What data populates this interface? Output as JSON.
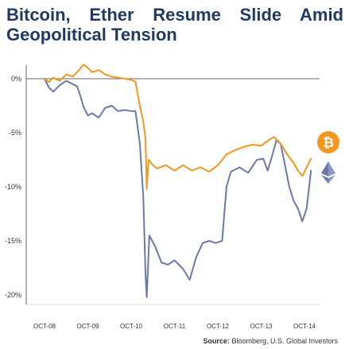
{
  "title": {
    "line1": "Bitcoin, Ether Resume Slide Amid",
    "line2": "Geopolitical Tension"
  },
  "source": {
    "label": "Source:",
    "text": "Bloomberg, U.S. Global Investors"
  },
  "colors": {
    "bitcoin": "#f2961e",
    "ether": "#6b78a8",
    "axis": "#666666",
    "title": "#1f3a64"
  },
  "icons": {
    "bitcoin": "bitcoin-logo-icon",
    "ether": "ether-logo-icon"
  },
  "chart_data": {
    "type": "line",
    "title": "Bitcoin, Ether Resume Slide Amid Geopolitical Tension",
    "xlabel": "",
    "ylabel": "",
    "x_ticks": [
      "OCT-08",
      "OCT-09",
      "OCT-10",
      "OCT-11",
      "OCT-12",
      "OCT-13",
      "OCT-14"
    ],
    "y_ticks": [
      "0%",
      "-5%",
      "-10%",
      "-15%",
      "-20%"
    ],
    "ylim": [
      -20.5,
      0.5
    ],
    "grid": false,
    "series": [
      {
        "key": "bitcoin",
        "points": [
          [
            0,
            0
          ],
          [
            0.1,
            -0.3
          ],
          [
            0.2,
            0.1
          ],
          [
            0.35,
            -0.2
          ],
          [
            0.5,
            0.4
          ],
          [
            0.65,
            0.2
          ],
          [
            0.8,
            0.8
          ],
          [
            0.9,
            1.3
          ],
          [
            1.0,
            1.0
          ],
          [
            1.1,
            0.6
          ],
          [
            1.25,
            0.8
          ],
          [
            1.4,
            0.4
          ],
          [
            1.55,
            0.2
          ],
          [
            1.7,
            0.1
          ],
          [
            1.85,
            0.0
          ],
          [
            2.0,
            -0.1
          ],
          [
            2.1,
            -0.3
          ],
          [
            2.2,
            -2.5
          ],
          [
            2.28,
            -4.0
          ],
          [
            2.33,
            -5.5
          ],
          [
            2.36,
            -10.2
          ],
          [
            2.4,
            -7.5
          ],
          [
            2.5,
            -8.0
          ],
          [
            2.6,
            -8.3
          ],
          [
            2.8,
            -8.0
          ],
          [
            3.0,
            -8.5
          ],
          [
            3.2,
            -8.0
          ],
          [
            3.4,
            -8.5
          ],
          [
            3.6,
            -8.2
          ],
          [
            3.8,
            -8.6
          ],
          [
            4.0,
            -8.0
          ],
          [
            4.2,
            -7.0
          ],
          [
            4.4,
            -6.6
          ],
          [
            4.6,
            -6.3
          ],
          [
            4.8,
            -6.1
          ],
          [
            5.0,
            -6.2
          ],
          [
            5.2,
            -5.6
          ],
          [
            5.3,
            -5.4
          ],
          [
            5.45,
            -6.0
          ],
          [
            5.6,
            -7.0
          ],
          [
            5.75,
            -7.8
          ],
          [
            5.85,
            -8.5
          ],
          [
            5.95,
            -9.0
          ],
          [
            6.05,
            -8.2
          ],
          [
            6.15,
            -7.4
          ]
        ]
      },
      {
        "key": "ether",
        "points": [
          [
            0,
            0
          ],
          [
            0.1,
            -0.8
          ],
          [
            0.2,
            -1.2
          ],
          [
            0.35,
            -0.6
          ],
          [
            0.5,
            -0.2
          ],
          [
            0.65,
            -0.5
          ],
          [
            0.75,
            -0.7
          ],
          [
            0.82,
            -1.5
          ],
          [
            0.9,
            -2.6
          ],
          [
            1.0,
            -3.4
          ],
          [
            1.1,
            -3.2
          ],
          [
            1.25,
            -3.6
          ],
          [
            1.4,
            -2.7
          ],
          [
            1.55,
            -2.5
          ],
          [
            1.7,
            -3.0
          ],
          [
            1.85,
            -2.9
          ],
          [
            2.0,
            -3.0
          ],
          [
            2.1,
            -3.0
          ],
          [
            2.2,
            -6.0
          ],
          [
            2.28,
            -11.0
          ],
          [
            2.33,
            -18.0
          ],
          [
            2.36,
            -20.2
          ],
          [
            2.42,
            -14.5
          ],
          [
            2.55,
            -15.5
          ],
          [
            2.7,
            -17.0
          ],
          [
            2.85,
            -17.2
          ],
          [
            3.0,
            -16.8
          ],
          [
            3.2,
            -17.6
          ],
          [
            3.35,
            -18.6
          ],
          [
            3.5,
            -16.5
          ],
          [
            3.65,
            -15.2
          ],
          [
            3.8,
            -15.0
          ],
          [
            3.95,
            -15.2
          ],
          [
            4.1,
            -15.0
          ],
          [
            4.2,
            -10.0
          ],
          [
            4.3,
            -8.6
          ],
          [
            4.5,
            -8.2
          ],
          [
            4.7,
            -8.7
          ],
          [
            4.9,
            -7.5
          ],
          [
            5.05,
            -7.4
          ],
          [
            5.15,
            -8.5
          ],
          [
            5.25,
            -7.2
          ],
          [
            5.35,
            -5.7
          ],
          [
            5.45,
            -6.0
          ],
          [
            5.55,
            -8.0
          ],
          [
            5.65,
            -10.0
          ],
          [
            5.75,
            -11.3
          ],
          [
            5.85,
            -12.0
          ],
          [
            5.95,
            -13.2
          ],
          [
            6.05,
            -12.0
          ],
          [
            6.15,
            -8.5
          ]
        ]
      }
    ]
  }
}
